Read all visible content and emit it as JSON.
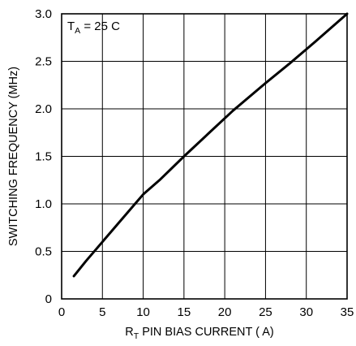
{
  "chart_data": {
    "type": "line",
    "xlabel": {
      "prefix": "R",
      "prefix_subscript": "T",
      "text": " PIN BIAS CURRENT (  A)"
    },
    "ylabel": "SWITCHING FREQUENCY (MHz)",
    "annotation": {
      "prefix": "T",
      "subscript": "A",
      "text": " = 25  C"
    },
    "xlim": [
      0,
      35
    ],
    "ylim": [
      0,
      3.0
    ],
    "x_ticks": [
      "0",
      "5",
      "10",
      "15",
      "20",
      "25",
      "30",
      "35"
    ],
    "y_ticks": [
      "0",
      "0.5",
      "1.0",
      "1.5",
      "2.0",
      "2.5",
      "3.0"
    ],
    "grid": true,
    "series": [
      {
        "x": [
          1.5,
          3,
          5,
          7,
          9,
          10,
          12,
          15,
          18,
          21,
          25,
          28,
          31,
          35
        ],
        "y": [
          0.24,
          0.4,
          0.6,
          0.8,
          1.0,
          1.1,
          1.25,
          1.5,
          1.74,
          1.98,
          2.27,
          2.48,
          2.7,
          3.0
        ]
      }
    ]
  }
}
